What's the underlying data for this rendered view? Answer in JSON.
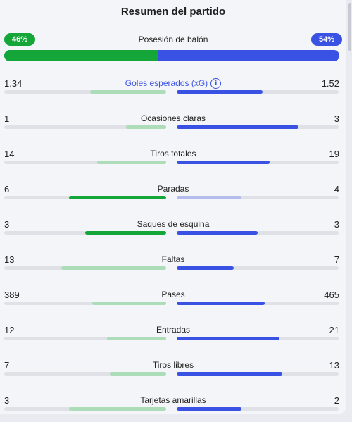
{
  "title": "Resumen del partido",
  "colors": {
    "home": "#15a63a",
    "home_light": "#acdcb8",
    "away": "#3a52e3",
    "away_light": "#b4bbed",
    "track": "#dfe1e7"
  },
  "possession": {
    "label": "Posesión de balón",
    "home_text": "46%",
    "away_text": "54%",
    "home_fraction": 0.46,
    "away_fraction": 0.54
  },
  "stats": [
    {
      "label": "Goles esperados (xG)",
      "home": "1.34",
      "away": "1.52",
      "home_num": 1.34,
      "away_num": 1.52,
      "has_info": true,
      "info_icon": "info-icon",
      "leader": "away"
    },
    {
      "label": "Ocasiones claras",
      "home": "1",
      "away": "3",
      "home_num": 1,
      "away_num": 3,
      "leader": "away"
    },
    {
      "label": "Tiros totales",
      "home": "14",
      "away": "19",
      "home_num": 14,
      "away_num": 19,
      "leader": "away"
    },
    {
      "label": "Paradas",
      "home": "6",
      "away": "4",
      "home_num": 6,
      "away_num": 4,
      "leader": "home"
    },
    {
      "label": "Saques de esquina",
      "home": "3",
      "away": "3",
      "home_num": 3,
      "away_num": 3,
      "leader": "both"
    },
    {
      "label": "Faltas",
      "home": "13",
      "away": "7",
      "home_num": 13,
      "away_num": 7,
      "leader": "away"
    },
    {
      "label": "Pases",
      "home": "389",
      "away": "465",
      "home_num": 389,
      "away_num": 465,
      "leader": "away"
    },
    {
      "label": "Entradas",
      "home": "12",
      "away": "21",
      "home_num": 12,
      "away_num": 21,
      "leader": "away"
    },
    {
      "label": "Tiros libres",
      "home": "7",
      "away": "13",
      "home_num": 7,
      "away_num": 13,
      "leader": "away"
    },
    {
      "label": "Tarjetas amarillas",
      "home": "3",
      "away": "2",
      "home_num": 3,
      "away_num": 2,
      "leader": "away"
    }
  ]
}
